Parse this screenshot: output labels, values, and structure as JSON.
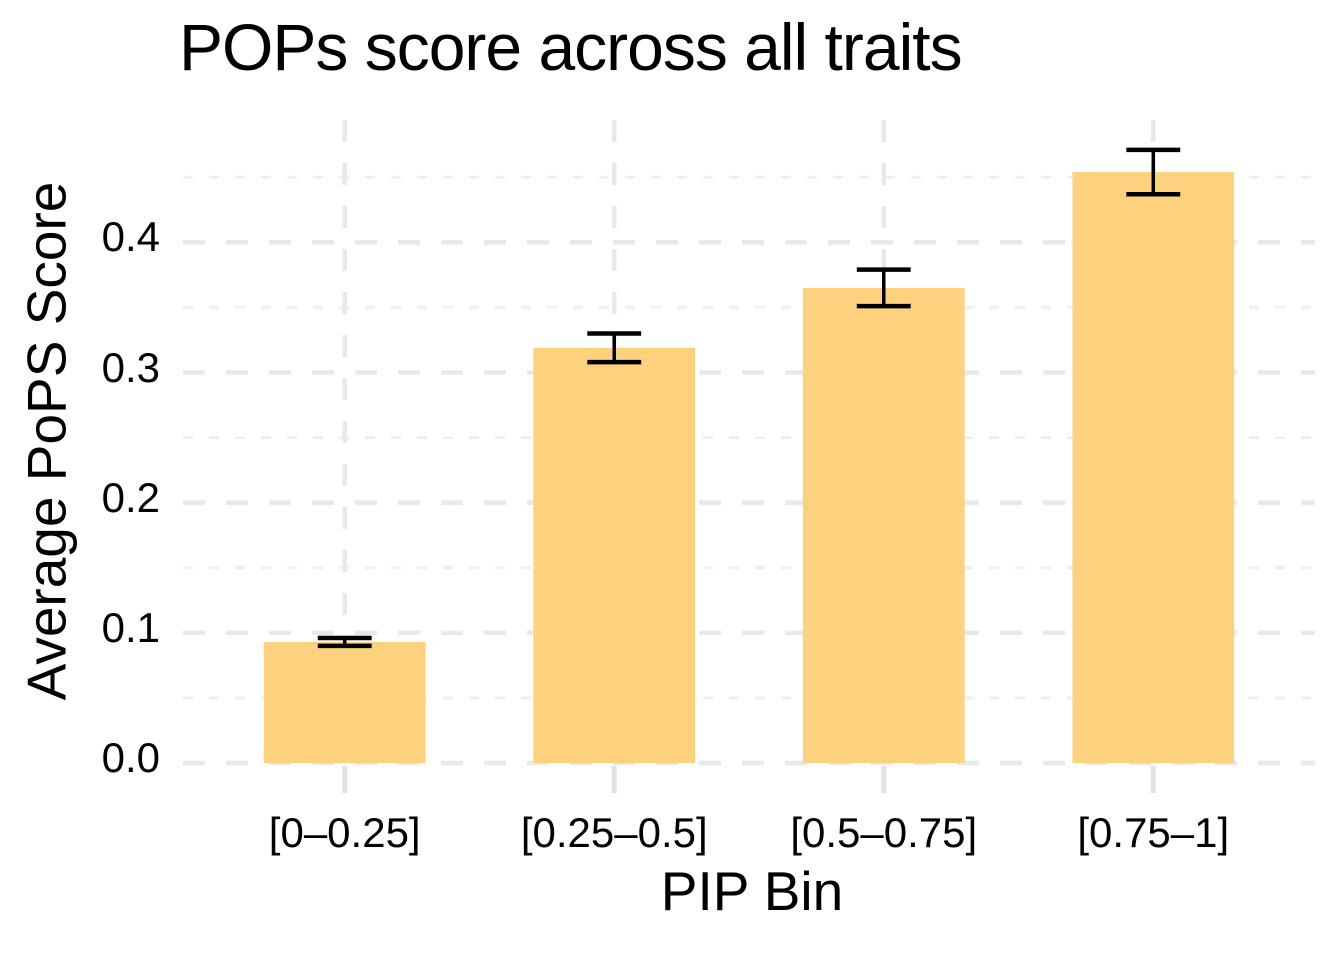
{
  "page": {
    "background": "#FFFFFF"
  },
  "chart_data": {
    "type": "bar",
    "title": "POPs score across all traits",
    "xlabel": "PIP Bin",
    "ylabel": "Average PoPS Score",
    "categories": [
      "[0–0.25]",
      "[0.25–0.5]",
      "[0.5–0.75]",
      "[0.75–1]"
    ],
    "values": [
      0.093,
      0.319,
      0.365,
      0.454
    ],
    "errors": [
      0.003,
      0.011,
      0.014,
      0.017
    ],
    "y_major_ticks": [
      0,
      0.1,
      0.2,
      0.3,
      0.4
    ],
    "y_tick_labels": [
      "0.0",
      "0.1",
      "0.2",
      "0.3",
      "0.4"
    ],
    "y_minor_ticks": [
      0.05,
      0.15,
      0.25,
      0.35,
      0.45
    ],
    "ylim": [
      0,
      0.494
    ],
    "legend": "none",
    "grid": {
      "style": "dashed",
      "major": true,
      "minor": true,
      "vertical_at_category_centers": true
    },
    "colors": {
      "bar_fill": "#FDD17D",
      "error_bar": "#000000",
      "grid_major": "#E8E8E8",
      "grid_minor": "#EFEFEF",
      "axis_tick": "#E2E2E2",
      "text": "#000000",
      "background": "#FFFFFF"
    }
  }
}
